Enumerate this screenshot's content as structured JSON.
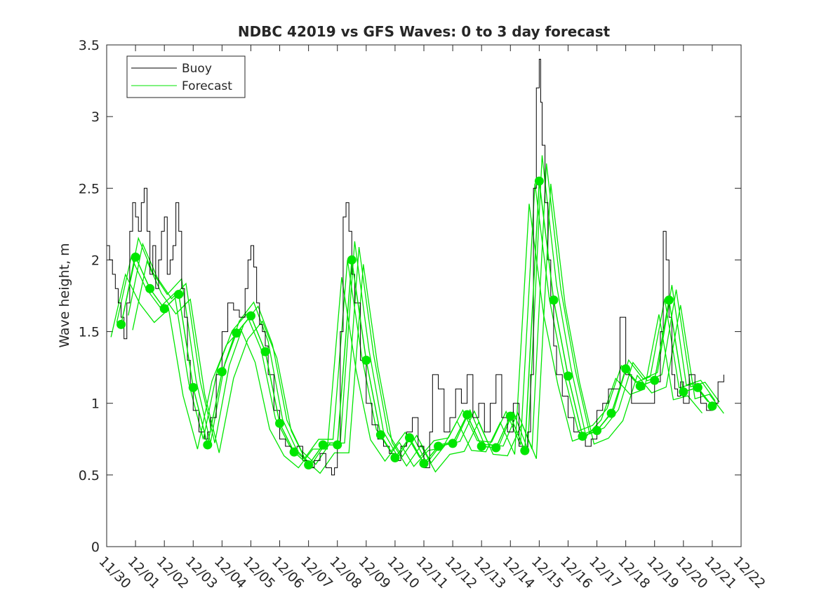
{
  "chart_data": {
    "type": "line",
    "title": "NDBC 42019 vs GFS Waves: 0 to 3 day forecast",
    "xlabel": "",
    "ylabel": "Wave height, m",
    "xlim": [
      0,
      22
    ],
    "ylim": [
      0,
      3.5
    ],
    "x_tick_labels": [
      "11/30",
      "12/01",
      "12/02",
      "12/03",
      "12/04",
      "12/05",
      "12/06",
      "12/07",
      "12/08",
      "12/09",
      "12/10",
      "12/11",
      "12/12",
      "12/13",
      "12/14",
      "12/15",
      "12/16",
      "12/17",
      "12/18",
      "12/19",
      "12/20",
      "12/21",
      "12/22"
    ],
    "y_ticks": [
      0,
      0.5,
      1,
      1.5,
      2,
      2.5,
      3,
      3.5
    ],
    "y_tick_labels": [
      "0",
      "0.5",
      "1",
      "1.5",
      "2",
      "2.5",
      "3",
      "3.5"
    ],
    "legend": {
      "placement": "top-left",
      "entries": [
        "Buoy",
        "Forecast"
      ]
    },
    "colors": {
      "buoy": "#000000",
      "forecast": "#00e600",
      "axis": "#262626"
    },
    "series": [
      {
        "name": "Buoy",
        "x": [
          0,
          0.1,
          0.2,
          0.3,
          0.4,
          0.5,
          0.6,
          0.7,
          0.8,
          0.9,
          1.0,
          1.1,
          1.2,
          1.3,
          1.4,
          1.5,
          1.6,
          1.7,
          1.8,
          1.9,
          2.0,
          2.1,
          2.2,
          2.3,
          2.4,
          2.5,
          2.6,
          2.7,
          2.8,
          2.9,
          3.0,
          3.2,
          3.4,
          3.5,
          3.6,
          3.8,
          4.0,
          4.2,
          4.4,
          4.6,
          4.8,
          4.9,
          5.0,
          5.1,
          5.2,
          5.3,
          5.4,
          5.5,
          5.6,
          5.8,
          6.0,
          6.2,
          6.4,
          6.6,
          6.8,
          7.0,
          7.2,
          7.4,
          7.6,
          7.8,
          7.9,
          8.0,
          8.1,
          8.2,
          8.3,
          8.4,
          8.5,
          8.6,
          8.8,
          9.0,
          9.2,
          9.4,
          9.6,
          9.8,
          10.0,
          10.2,
          10.4,
          10.6,
          10.8,
          11.0,
          11.2,
          11.3,
          11.5,
          11.7,
          11.9,
          12.1,
          12.3,
          12.5,
          12.7,
          12.9,
          13.1,
          13.3,
          13.5,
          13.7,
          13.9,
          14.1,
          14.3,
          14.5,
          14.6,
          14.7,
          14.8,
          14.9,
          15.0,
          15.05,
          15.1,
          15.2,
          15.3,
          15.4,
          15.5,
          15.6,
          15.8,
          16.0,
          16.2,
          16.4,
          16.6,
          16.8,
          17.0,
          17.2,
          17.4,
          17.6,
          17.8,
          18.0,
          18.2,
          18.4,
          18.6,
          18.8,
          19.0,
          19.2,
          19.3,
          19.4,
          19.5,
          19.6,
          19.7,
          19.8,
          19.9,
          20.0,
          20.2,
          20.4,
          20.6,
          20.8,
          21.0,
          21.2,
          21.4
        ],
        "values": [
          2.1,
          2.0,
          1.9,
          1.8,
          1.7,
          1.6,
          1.45,
          1.7,
          2.2,
          2.4,
          2.3,
          2.2,
          2.4,
          2.5,
          2.2,
          1.9,
          2.1,
          1.8,
          2.0,
          2.2,
          2.3,
          1.9,
          2.0,
          2.1,
          2.4,
          2.2,
          1.8,
          1.6,
          1.3,
          1.1,
          0.95,
          0.8,
          0.75,
          0.8,
          0.9,
          1.2,
          1.5,
          1.7,
          1.65,
          1.6,
          1.8,
          2.0,
          2.1,
          1.95,
          1.7,
          1.55,
          1.5,
          1.4,
          1.2,
          0.95,
          0.75,
          0.7,
          0.68,
          0.7,
          0.6,
          0.55,
          0.6,
          0.65,
          0.55,
          0.5,
          0.55,
          0.7,
          1.5,
          2.3,
          2.4,
          2.2,
          1.9,
          1.7,
          1.3,
          1.0,
          0.85,
          0.75,
          0.7,
          0.65,
          0.6,
          0.7,
          0.8,
          0.9,
          0.7,
          0.55,
          0.8,
          1.2,
          1.1,
          0.8,
          0.9,
          1.1,
          1.0,
          1.2,
          0.9,
          1.0,
          0.8,
          1.0,
          1.2,
          0.9,
          0.8,
          1.0,
          0.7,
          0.65,
          0.8,
          1.2,
          2.5,
          3.2,
          3.4,
          3.1,
          2.8,
          2.4,
          2.0,
          1.7,
          1.4,
          1.2,
          1.05,
          0.9,
          0.8,
          0.75,
          0.7,
          0.75,
          0.95,
          1.0,
          1.1,
          1.1,
          1.6,
          1.2,
          1.0,
          1.0,
          1.0,
          1.0,
          1.15,
          1.5,
          2.2,
          2.0,
          1.6,
          1.2,
          1.1,
          1.05,
          1.15,
          1.0,
          1.2,
          1.1,
          1.0,
          0.95,
          1.0,
          1.15,
          1.2
        ]
      },
      {
        "name": "Forecast",
        "x": [
          0.5,
          1.0,
          1.5,
          2.0,
          2.5,
          3.0,
          3.5,
          4.0,
          4.5,
          5.0,
          5.5,
          6.0,
          6.5,
          7.0,
          7.5,
          8.0,
          8.5,
          9.0,
          9.5,
          10.0,
          10.5,
          11.0,
          11.5,
          12.0,
          12.5,
          13.0,
          13.5,
          14.0,
          14.5,
          15.0,
          15.5,
          16.0,
          16.5,
          17.0,
          17.5,
          18.0,
          18.5,
          19.0,
          19.5,
          20.0,
          20.5,
          21.0
        ],
        "values": [
          1.55,
          2.02,
          1.8,
          1.66,
          1.76,
          1.11,
          0.71,
          1.22,
          1.49,
          1.61,
          1.36,
          0.86,
          0.66,
          0.57,
          0.71,
          0.71,
          2.0,
          1.3,
          0.78,
          0.62,
          0.76,
          0.58,
          0.7,
          0.72,
          0.92,
          0.7,
          0.69,
          0.91,
          0.67,
          2.55,
          1.72,
          1.19,
          0.77,
          0.81,
          0.93,
          1.24,
          1.12,
          1.16,
          1.72,
          1.08,
          1.11,
          0.98
        ]
      }
    ]
  }
}
